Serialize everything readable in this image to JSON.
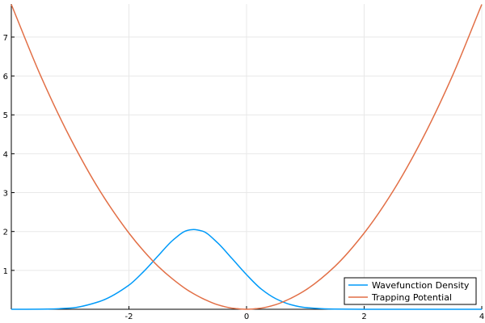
{
  "chart_data": {
    "type": "line",
    "title": "",
    "xlabel": "",
    "ylabel": "",
    "xlim": [
      -4,
      4
    ],
    "ylim": [
      0,
      7.85
    ],
    "grid": true,
    "legend_position": "bottom-right",
    "x_ticks": [
      {
        "value": -2,
        "label": "-2"
      },
      {
        "value": 0,
        "label": "0"
      },
      {
        "value": 2,
        "label": "2"
      },
      {
        "value": 4,
        "label": "4"
      }
    ],
    "y_ticks": [
      {
        "value": 1,
        "label": "1"
      },
      {
        "value": 2,
        "label": "2"
      },
      {
        "value": 3,
        "label": "3"
      },
      {
        "value": 4,
        "label": "4"
      },
      {
        "value": 5,
        "label": "5"
      },
      {
        "value": 6,
        "label": "6"
      },
      {
        "value": 7,
        "label": "7"
      }
    ],
    "x": [
      -4.0,
      -3.5,
      -3.0,
      -2.5,
      -2.0,
      -1.75,
      -1.5,
      -1.25,
      -1.0,
      -0.9,
      -0.75,
      -0.5,
      -0.25,
      0.0,
      0.25,
      0.5,
      0.75,
      1.0,
      1.5,
      2.0,
      2.5,
      3.0,
      3.5,
      4.0
    ],
    "series": [
      {
        "name": "Wavefunction Density",
        "color": "#009af9",
        "values": [
          0.0,
          0.002,
          0.03,
          0.2,
          0.62,
          0.97,
          1.38,
          1.78,
          2.03,
          2.05,
          2.01,
          1.72,
          1.31,
          0.89,
          0.52,
          0.27,
          0.12,
          0.045,
          0.005,
          0.0,
          0.0,
          0.0,
          0.0,
          0.0
        ]
      },
      {
        "name": "Trapping Potential",
        "color": "#e26f46",
        "values": [
          7.84,
          6.0,
          4.41,
          3.06,
          1.96,
          1.5,
          1.1,
          0.77,
          0.49,
          0.4,
          0.28,
          0.12,
          0.03,
          0.0,
          0.03,
          0.12,
          0.28,
          0.49,
          1.1,
          1.96,
          3.06,
          4.41,
          6.0,
          7.84
        ]
      }
    ]
  }
}
